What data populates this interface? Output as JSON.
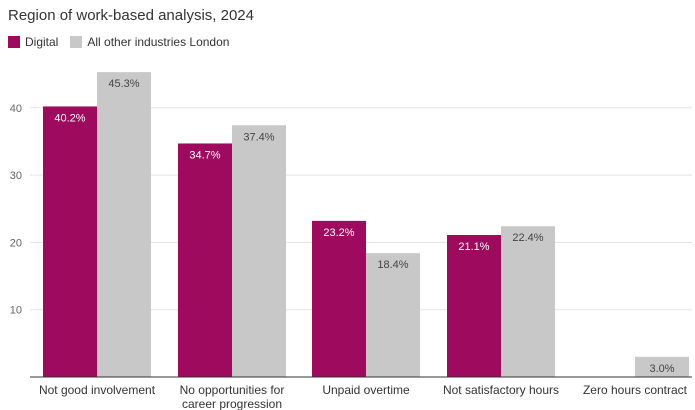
{
  "chart_data": {
    "type": "bar",
    "title": "Region of work-based analysis, 2024",
    "xlabel": "",
    "ylabel": "",
    "categories": [
      [
        "Not good involvement"
      ],
      [
        "No opportunities for",
        "career progression"
      ],
      [
        "Unpaid overtime"
      ],
      [
        "Not satisfactory hours"
      ],
      [
        "Zero hours contract"
      ]
    ],
    "series": [
      {
        "name": "Digital",
        "color": "#9e0a5e",
        "values": [
          40.2,
          34.7,
          23.2,
          21.1,
          null
        ],
        "labels": [
          "40.2%",
          "34.7%",
          "23.2%",
          "21.1%",
          ""
        ]
      },
      {
        "name": "All other industries London",
        "color": "#c8c8c8",
        "values": [
          45.3,
          37.4,
          18.4,
          22.4,
          3.0
        ],
        "labels": [
          "45.3%",
          "37.4%",
          "18.4%",
          "22.4%",
          "3.0%"
        ]
      }
    ],
    "ylim": [
      0,
      45.3
    ],
    "yticks": [
      10,
      20,
      30,
      40
    ],
    "grid": true,
    "legend_position": "top-left"
  }
}
